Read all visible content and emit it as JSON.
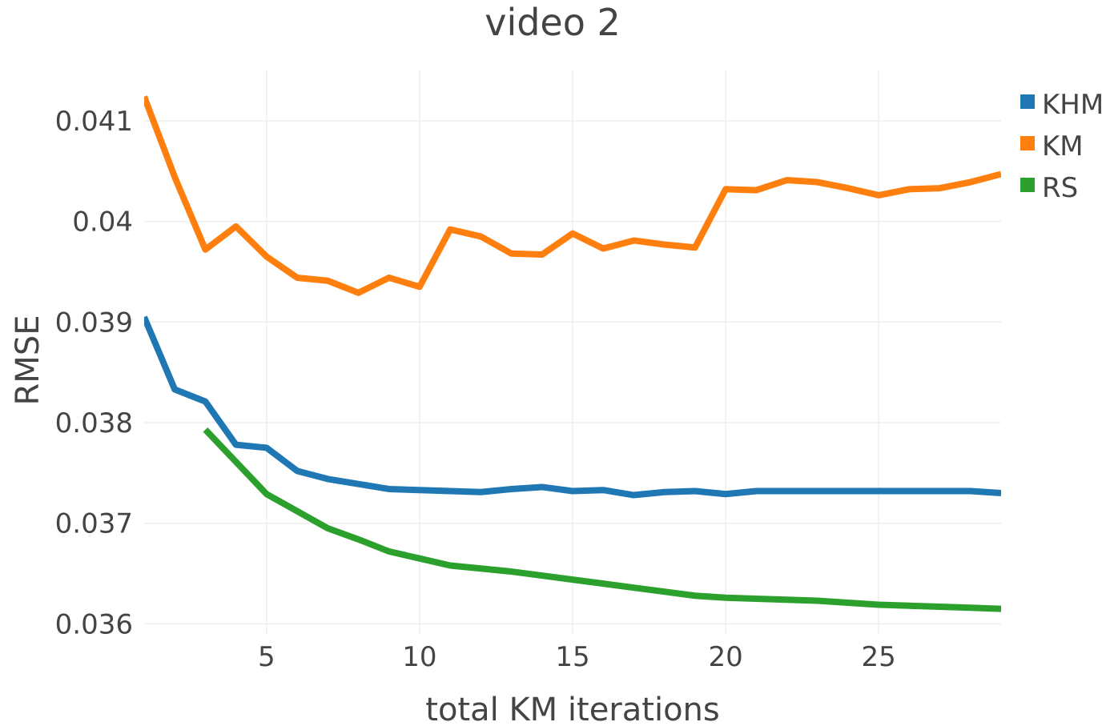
{
  "chart_data": {
    "type": "line",
    "title": "video 2",
    "xlabel": "total KM iterations",
    "ylabel": "RMSE",
    "xlim": [
      1,
      29
    ],
    "ylim": [
      0.0359,
      0.0415
    ],
    "xticks": [
      5,
      10,
      15,
      20,
      25
    ],
    "xtick_labels": [
      "5",
      "10",
      "15",
      "20",
      "25"
    ],
    "yticks": [
      0.036,
      0.037,
      0.038,
      0.039,
      0.04,
      0.041
    ],
    "ytick_labels": [
      "0.036",
      "0.037",
      "0.038",
      "0.039",
      "0.04",
      "0.041"
    ],
    "grid": true,
    "legend_position": "top-right",
    "series": [
      {
        "name": "KHM",
        "color": "#1f77b4",
        "x": [
          1,
          2,
          3,
          4,
          5,
          6,
          7,
          8,
          9,
          10,
          11,
          12,
          13,
          14,
          15,
          16,
          17,
          18,
          19,
          20,
          21,
          22,
          23,
          24,
          25,
          26,
          27,
          28,
          29
        ],
        "y": [
          0.03905,
          0.03833,
          0.03821,
          0.03778,
          0.03775,
          0.03752,
          0.03744,
          0.03739,
          0.03734,
          0.03733,
          0.03732,
          0.03731,
          0.03734,
          0.03736,
          0.03732,
          0.03733,
          0.03728,
          0.03731,
          0.03732,
          0.03729,
          0.03732,
          0.03732,
          0.03732,
          0.03732,
          0.03732,
          0.03732,
          0.03732,
          0.03732,
          0.0373
        ]
      },
      {
        "name": "KM",
        "color": "#ff7f0e",
        "x": [
          1,
          2,
          3,
          4,
          5,
          6,
          7,
          8,
          9,
          10,
          11,
          12,
          13,
          14,
          15,
          16,
          17,
          18,
          19,
          20,
          21,
          22,
          23,
          24,
          25,
          26,
          27,
          28,
          29
        ],
        "y": [
          0.04124,
          0.04044,
          0.03972,
          0.03995,
          0.03965,
          0.03944,
          0.03941,
          0.03929,
          0.03944,
          0.03935,
          0.03992,
          0.03985,
          0.03968,
          0.03967,
          0.03988,
          0.03973,
          0.03981,
          0.03977,
          0.03974,
          0.04032,
          0.04031,
          0.04041,
          0.04039,
          0.04033,
          0.04026,
          0.04032,
          0.04033,
          0.04039,
          0.04047
        ]
      },
      {
        "name": "RS",
        "color": "#2ca02c",
        "x": [
          3,
          4,
          5,
          6,
          7,
          8,
          9,
          10,
          11,
          12,
          13,
          14,
          15,
          16,
          17,
          18,
          19,
          20,
          21,
          22,
          23,
          24,
          25,
          26,
          27,
          28,
          29
        ],
        "y": [
          0.03793,
          0.03761,
          0.03729,
          0.03712,
          0.03695,
          0.03684,
          0.03672,
          0.03665,
          0.03658,
          0.03655,
          0.03652,
          0.03648,
          0.03644,
          0.0364,
          0.03636,
          0.03632,
          0.03628,
          0.03626,
          0.03625,
          0.03624,
          0.03623,
          0.03621,
          0.03619,
          0.03618,
          0.03617,
          0.03616,
          0.03615
        ]
      }
    ]
  }
}
